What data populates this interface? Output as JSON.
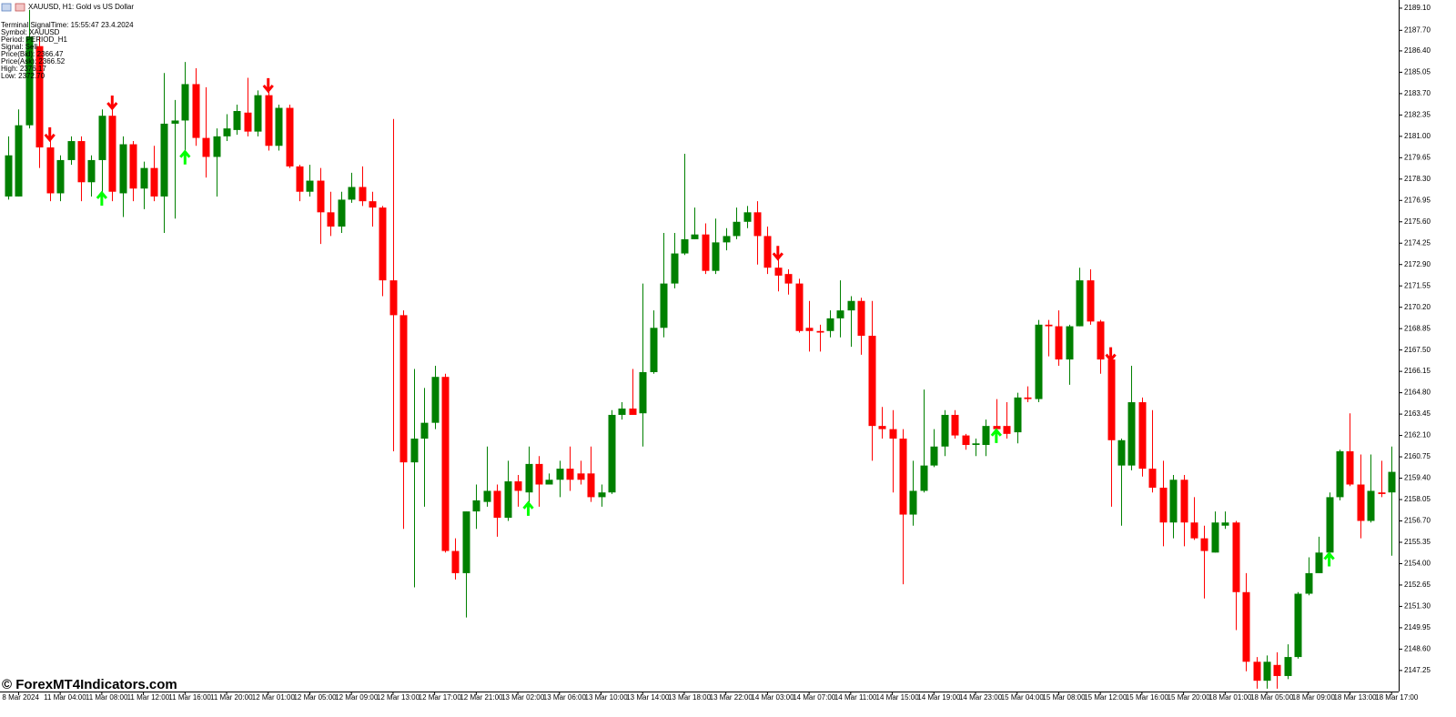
{
  "window": {
    "title": "XAUUSD, H1:  Gold vs US Dollar",
    "info": [
      "Terminal SignalTime: 15:55:47   23.4.2024",
      "Symbol: XAUUSD",
      "Period: PERIOD_H1",
      "Signal: Sell",
      "Price(Bid): 2366.47",
      "Price(Ask): 2366.52",
      "High: 2376.17",
      "Low: 2372.70"
    ],
    "watermark": "© ForexMT4Indicators.com"
  },
  "chart_data": {
    "type": "candlestick",
    "categories": [
      null,
      "8 Mar 2024",
      null,
      null,
      null,
      "11 Mar 04:00",
      null,
      null,
      null,
      "11 Mar 08:00",
      null,
      null,
      null,
      "11 Mar 12:00",
      null,
      null,
      null,
      "11 Mar 16:00",
      null,
      null,
      null,
      "11 Mar 20:00",
      null,
      null,
      null,
      "12 Mar 01:00",
      null,
      null,
      null,
      "12 Mar 05:00",
      null,
      null,
      null,
      "12 Mar 09:00",
      null,
      null,
      null,
      "12 Mar 13:00",
      null,
      null,
      null,
      "12 Mar 17:00",
      null,
      null,
      null,
      "12 Mar 21:00",
      null,
      null,
      null,
      "13 Mar 02:00",
      null,
      null,
      null,
      "13 Mar 06:00",
      null,
      null,
      null,
      "13 Mar 10:00",
      null,
      null,
      null,
      "13 Mar 14:00",
      null,
      null,
      null,
      "13 Mar 18:00",
      null,
      null,
      null,
      "13 Mar 22:00",
      null,
      null,
      null,
      "14 Mar 03:00",
      null,
      null,
      null,
      "14 Mar 07:00",
      null,
      null,
      null,
      "14 Mar 11:00",
      null,
      null,
      null,
      "14 Mar 15:00",
      null,
      null,
      null,
      "14 Mar 19:00",
      null,
      null,
      null,
      "14 Mar 23:00",
      null,
      null,
      null,
      "15 Mar 04:00",
      null,
      null,
      null,
      "15 Mar 08:00",
      null,
      null,
      null,
      "15 Mar 12:00",
      null,
      null,
      null,
      "15 Mar 16:00",
      null,
      null,
      null,
      "15 Mar 20:00",
      null,
      null,
      null,
      "18 Mar 01:00",
      null,
      null,
      null,
      "18 Mar 05:00",
      null,
      null,
      null,
      "18 Mar 09:00",
      null,
      null,
      null,
      "18 Mar 13:00",
      null,
      null,
      null,
      "18 Mar 17:00"
    ],
    "open": [
      2177.2,
      2177.2,
      2181.7,
      2186.7,
      2180.3,
      2177.4,
      2179.5,
      2180.7,
      2178.1,
      2179.5,
      2182.3,
      2177.4,
      2180.5,
      2177.7,
      2179.0,
      2177.2,
      2181.8,
      2182.0,
      2184.3,
      2180.9,
      2179.7,
      2181.0,
      2181.4,
      2182.5,
      2181.3,
      2183.6,
      2180.4,
      2182.8,
      2179.1,
      2177.5,
      2178.2,
      2176.2,
      2175.3,
      2177.0,
      2177.8,
      2176.9,
      2176.5,
      2171.9,
      2169.7,
      2160.4,
      2161.9,
      2162.9,
      2165.8,
      2154.8,
      2153.4,
      2157.3,
      2157.9,
      2158.6,
      2156.9,
      2159.2,
      2158.5,
      2160.3,
      2159.0,
      2159.3,
      2160.0,
      2159.7,
      2159.7,
      2158.2,
      2158.5,
      2163.4,
      2163.8,
      2163.5,
      2166.1,
      2168.9,
      2171.7,
      2173.6,
      2174.5,
      2174.8,
      2172.5,
      2174.3,
      2174.7,
      2175.6,
      2176.2,
      2174.7,
      2172.7,
      2172.3,
      2171.7,
      2168.9,
      2168.7,
      2168.7,
      2169.5,
      2170.0,
      2170.6,
      2168.4,
      2162.7,
      2162.5,
      2161.9,
      2157.1,
      2158.6,
      2160.2,
      2161.4,
      2163.4,
      2162.1,
      2161.5,
      2161.5,
      2162.7,
      2162.7,
      2162.3,
      2164.5,
      2164.4,
      2169.1,
      2169.0,
      2166.9,
      2169.0,
      2171.9,
      2169.3,
      2166.9,
      2160.2,
      2160.2,
      2164.2,
      2160.0,
      2158.8,
      2156.6,
      2159.3,
      2156.6,
      2155.6,
      2154.7,
      2156.4,
      2156.6,
      2152.2,
      2147.8,
      2146.6,
      2147.6,
      2146.9,
      2148.1,
      2152.1,
      2153.4,
      2154.7,
      2158.2,
      2161.1,
      2159.0,
      2156.7,
      2158.5,
      2158.5
    ],
    "high": [
      2181.0,
      2182.7,
      2189.0,
      2187.3,
      2181.0,
      2179.8,
      2181.0,
      2181.0,
      2179.8,
      2182.7,
      2183.0,
      2181.0,
      2180.7,
      2179.4,
      2180.4,
      2185.0,
      2183.3,
      2185.7,
      2185.3,
      2184.1,
      2181.5,
      2182.4,
      2183.0,
      2184.7,
      2183.9,
      2184.1,
      2183.0,
      2183.0,
      2179.2,
      2179.2,
      2179.0,
      2177.5,
      2177.5,
      2178.7,
      2179.1,
      2177.5,
      2176.6,
      2182.1,
      2170.0,
      2166.3,
      2165.1,
      2166.5,
      2166.0,
      2155.6,
      2157.3,
      2159.0,
      2161.4,
      2159.0,
      2160.5,
      2159.6,
      2161.4,
      2160.8,
      2159.7,
      2160.5,
      2161.4,
      2160.5,
      2161.4,
      2159.0,
      2163.7,
      2164.2,
      2166.3,
      2171.7,
      2170.0,
      2174.9,
      2174.9,
      2179.9,
      2176.5,
      2175.5,
      2175.8,
      2175.2,
      2176.5,
      2176.6,
      2176.9,
      2175.3,
      2173.5,
      2172.6,
      2172.0,
      2170.6,
      2169.1,
      2170.0,
      2171.9,
      2170.9,
      2170.8,
      2170.6,
      2163.9,
      2163.7,
      2162.5,
      2160.5,
      2165.0,
      2162.5,
      2163.7,
      2163.7,
      2162.2,
      2161.9,
      2163.1,
      2164.4,
      2164.2,
      2164.8,
      2165.2,
      2169.4,
      2169.4,
      2170.0,
      2169.1,
      2172.7,
      2172.6,
      2169.4,
      2167.1,
      2161.9,
      2166.5,
      2164.5,
      2163.7,
      2160.5,
      2159.6,
      2159.6,
      2158.2,
      2156.4,
      2157.3,
      2157.3,
      2156.7,
      2153.4,
      2148.1,
      2148.2,
      2148.4,
      2148.9,
      2152.2,
      2154.4,
      2155.7,
      2158.5,
      2161.2,
      2163.5,
      2160.9,
      2160.9,
      2160.5,
      2161.4
    ],
    "low": [
      2177.0,
      2177.2,
      2181.5,
      2179.0,
      2176.9,
      2176.9,
      2179.2,
      2176.9,
      2177.2,
      2177.2,
      2176.9,
      2175.9,
      2176.9,
      2176.4,
      2176.9,
      2174.9,
      2175.8,
      2179.8,
      2180.4,
      2178.4,
      2177.2,
      2180.7,
      2181.1,
      2181.0,
      2181.0,
      2180.1,
      2180.1,
      2179.0,
      2176.9,
      2177.2,
      2174.2,
      2174.7,
      2174.9,
      2176.8,
      2176.6,
      2175.3,
      2170.9,
      2161.1,
      2156.2,
      2152.5,
      2157.6,
      2162.5,
      2154.7,
      2153.0,
      2150.6,
      2156.2,
      2157.6,
      2155.7,
      2156.7,
      2157.6,
      2157.6,
      2157.6,
      2159.0,
      2158.2,
      2158.6,
      2159.0,
      2157.9,
      2157.6,
      2158.4,
      2163.1,
      2163.4,
      2161.4,
      2166.0,
      2168.3,
      2171.4,
      2173.5,
      2174.5,
      2172.3,
      2172.3,
      2173.8,
      2174.5,
      2175.2,
      2172.9,
      2172.3,
      2171.2,
      2171.0,
      2168.6,
      2167.4,
      2167.4,
      2168.3,
      2168.3,
      2167.7,
      2167.2,
      2160.5,
      2161.9,
      2158.5,
      2152.7,
      2156.4,
      2158.5,
      2160.1,
      2160.8,
      2161.9,
      2161.2,
      2160.8,
      2160.8,
      2162.2,
      2161.9,
      2161.6,
      2164.2,
      2164.2,
      2167.1,
      2166.5,
      2165.3,
      2169.0,
      2169.1,
      2166.0,
      2157.6,
      2156.4,
      2159.9,
      2159.5,
      2158.5,
      2155.1,
      2155.6,
      2155.1,
      2155.5,
      2151.8,
      2154.7,
      2156.2,
      2149.8,
      2147.2,
      2146.1,
      2146.1,
      2146.1,
      2146.7,
      2148.0,
      2152.0,
      2153.4,
      2154.4,
      2158.0,
      2158.9,
      2155.6,
      2156.6,
      2158.2,
      2154.5
    ],
    "close": [
      2179.8,
      2181.7,
      2187.3,
      2180.3,
      2177.4,
      2179.5,
      2180.7,
      2178.1,
      2179.5,
      2182.3,
      2177.5,
      2180.5,
      2177.7,
      2179.0,
      2177.2,
      2181.8,
      2182.0,
      2184.3,
      2180.9,
      2179.7,
      2181.0,
      2181.5,
      2182.6,
      2181.3,
      2183.6,
      2180.4,
      2182.8,
      2179.1,
      2177.5,
      2178.2,
      2176.2,
      2175.3,
      2177.0,
      2177.8,
      2176.9,
      2176.5,
      2171.9,
      2169.7,
      2160.4,
      2161.9,
      2162.9,
      2165.8,
      2154.8,
      2153.4,
      2157.3,
      2158.0,
      2158.6,
      2156.9,
      2159.2,
      2158.6,
      2160.3,
      2159.0,
      2159.3,
      2160.0,
      2159.3,
      2159.3,
      2158.2,
      2158.5,
      2163.4,
      2163.8,
      2163.4,
      2166.1,
      2168.9,
      2171.7,
      2173.6,
      2174.5,
      2174.8,
      2172.5,
      2174.3,
      2174.7,
      2175.6,
      2176.2,
      2174.7,
      2172.7,
      2172.2,
      2171.7,
      2168.7,
      2168.7,
      2168.6,
      2169.5,
      2170.0,
      2170.6,
      2168.4,
      2162.7,
      2162.5,
      2161.9,
      2157.1,
      2158.6,
      2160.2,
      2161.4,
      2163.4,
      2162.1,
      2161.5,
      2161.6,
      2162.7,
      2162.5,
      2162.2,
      2164.5,
      2164.4,
      2169.1,
      2169.0,
      2166.9,
      2169.0,
      2171.9,
      2169.3,
      2166.9,
      2161.8,
      2161.8,
      2164.2,
      2160.0,
      2158.8,
      2156.6,
      2159.3,
      2156.6,
      2155.6,
      2154.8,
      2156.6,
      2156.6,
      2152.2,
      2147.8,
      2146.6,
      2147.8,
      2146.9,
      2148.1,
      2152.1,
      2153.4,
      2154.7,
      2158.2,
      2161.1,
      2159.0,
      2156.7,
      2158.6,
      2158.4,
      2159.8
    ],
    "up_color": "#008000",
    "down_color": "#ff0000",
    "buy_signals": [
      9,
      17,
      50,
      95,
      127
    ],
    "buy_color": "#00ff00",
    "sell_signals": [
      4,
      10,
      25,
      74,
      106
    ],
    "sell_color": "#ff0000",
    "ylim": [
      2145.92,
      2189.5
    ],
    "yticks": [
      {
        "value": 2189.1,
        "label": "2189.10"
      },
      {
        "value": 2187.7,
        "label": "2187.70"
      },
      {
        "value": 2186.4,
        "label": "2186.40"
      },
      2185.05,
      {
        "value": 2183.7,
        "label": "2183.70"
      },
      2182.35,
      {
        "value": 2181,
        "label": "2181.00"
      },
      2179.65,
      {
        "value": 2178.3,
        "label": "2178.30"
      },
      2176.95,
      {
        "value": 2175.6,
        "label": "2175.60"
      },
      2174.25,
      {
        "value": 2172.9,
        "label": "2172.90"
      },
      2171.55,
      {
        "value": 2170.2,
        "label": "2170.20"
      },
      2168.85,
      {
        "value": 2167.5,
        "label": "2167.50"
      },
      2166.15,
      {
        "value": 2164.8,
        "label": "2164.80"
      },
      2163.45,
      {
        "value": 2162.1,
        "label": "2162.10"
      },
      2160.75,
      {
        "value": 2159.4,
        "label": "2159.40"
      },
      2158.05,
      {
        "value": 2156.7,
        "label": "2156.70"
      },
      2155.35,
      {
        "value": 2154,
        "label": "2154.00"
      },
      2152.65,
      {
        "value": 2151.3,
        "label": "2151.30"
      },
      {
        "value": 2149.95,
        "label": "2149.95"
      },
      {
        "value": 2148.6,
        "label": "2148.60"
      },
      2147.25
    ],
    "grid": false
  }
}
